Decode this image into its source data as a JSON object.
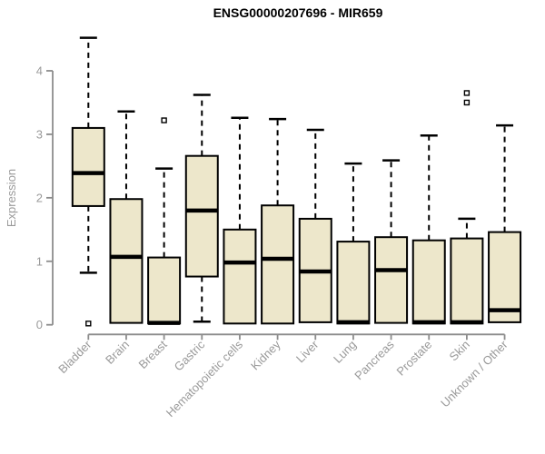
{
  "title": "ENSG00000207696 - MIR659",
  "y_axis": {
    "label": "Expression",
    "ticks": [
      0,
      1,
      2,
      3,
      4
    ]
  },
  "colors": {
    "box_fill": "#EDE7CB",
    "box_border": "#000000",
    "median": "#000000",
    "axis_gray": "#8C8C8C",
    "tick_text": "#9A9A9A",
    "title_color": "#000000",
    "background": "#FFFFFF",
    "outlier_fill": "#FFFFFF"
  },
  "chart_data": {
    "type": "boxplot",
    "title": "ENSG00000207696 - MIR659",
    "xlabel": "",
    "ylabel": "Expression",
    "ylim": [
      0,
      4.6
    ],
    "y_ticks": [
      0,
      1,
      2,
      3,
      4
    ],
    "grid": false,
    "legend": null,
    "categories": [
      "Bladder",
      "Brain",
      "Breast",
      "Gastric",
      "Hematopoietic cells",
      "Kidney",
      "Liver",
      "Lung",
      "Pancreas",
      "Prostate",
      "Skin",
      "Unknown / Other"
    ],
    "boxes": [
      {
        "label": "Bladder",
        "whisker_low": 0.82,
        "q1": 1.87,
        "median": 2.39,
        "q3": 3.1,
        "whisker_high": 4.52,
        "outliers": [
          0.02
        ]
      },
      {
        "label": "Brain",
        "whisker_low": 0.03,
        "q1": 0.03,
        "median": 1.07,
        "q3": 1.98,
        "whisker_high": 3.36,
        "outliers": []
      },
      {
        "label": "Breast",
        "whisker_low": 0.02,
        "q1": 0.02,
        "median": 0.03,
        "q3": 1.06,
        "whisker_high": 2.46,
        "outliers": [
          3.22
        ]
      },
      {
        "label": "Gastric",
        "whisker_low": 0.05,
        "q1": 0.76,
        "median": 1.8,
        "q3": 2.66,
        "whisker_high": 3.62,
        "outliers": []
      },
      {
        "label": "Hematopoietic cells",
        "whisker_low": 0.02,
        "q1": 0.02,
        "median": 0.98,
        "q3": 1.5,
        "whisker_high": 3.26,
        "outliers": []
      },
      {
        "label": "Kidney",
        "whisker_low": 0.02,
        "q1": 0.02,
        "median": 1.04,
        "q3": 1.88,
        "whisker_high": 3.24,
        "outliers": []
      },
      {
        "label": "Liver",
        "whisker_low": 0.04,
        "q1": 0.04,
        "median": 0.84,
        "q3": 1.67,
        "whisker_high": 3.07,
        "outliers": []
      },
      {
        "label": "Lung",
        "whisker_low": 0.02,
        "q1": 0.02,
        "median": 0.04,
        "q3": 1.31,
        "whisker_high": 2.54,
        "outliers": []
      },
      {
        "label": "Pancreas",
        "whisker_low": 0.03,
        "q1": 0.03,
        "median": 0.86,
        "q3": 1.38,
        "whisker_high": 2.59,
        "outliers": []
      },
      {
        "label": "Prostate",
        "whisker_low": 0.02,
        "q1": 0.02,
        "median": 0.04,
        "q3": 1.33,
        "whisker_high": 2.98,
        "outliers": []
      },
      {
        "label": "Skin",
        "whisker_low": 0.02,
        "q1": 0.02,
        "median": 0.04,
        "q3": 1.36,
        "whisker_high": 1.67,
        "outliers": [
          3.5,
          3.65
        ]
      },
      {
        "label": "Unknown / Other",
        "whisker_low": 0.04,
        "q1": 0.04,
        "median": 0.23,
        "q3": 1.46,
        "whisker_high": 3.14,
        "outliers": []
      }
    ]
  }
}
